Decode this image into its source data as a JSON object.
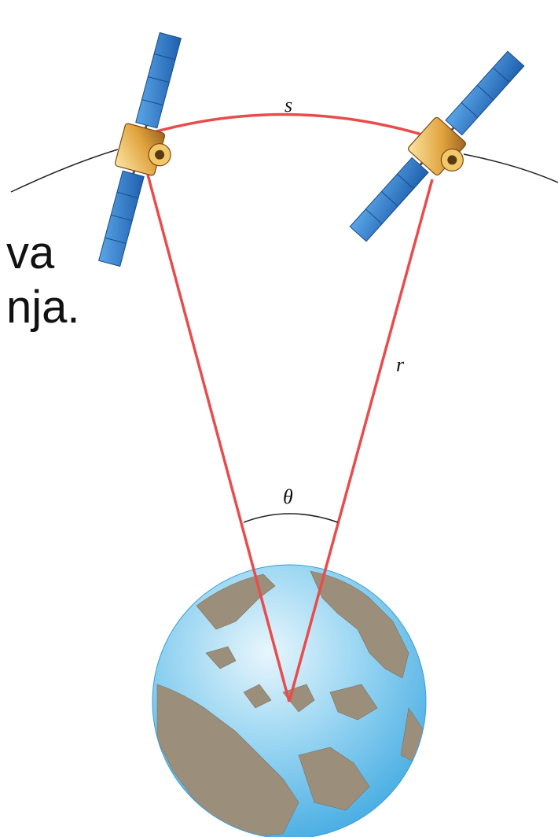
{
  "background_text": {
    "line1": "va",
    "line2": "nja."
  },
  "diagram": {
    "labels": {
      "arc": "s",
      "radius": "r",
      "angle": "θ"
    },
    "icons": [
      "satellite-icon",
      "earth-globe-icon"
    ]
  },
  "colors": {
    "radius_lines": "#e84c4c",
    "orbit": "#222222",
    "ocean": "#7fc8ee",
    "land": "#9b8f7c",
    "panel": "#2f78c8"
  }
}
